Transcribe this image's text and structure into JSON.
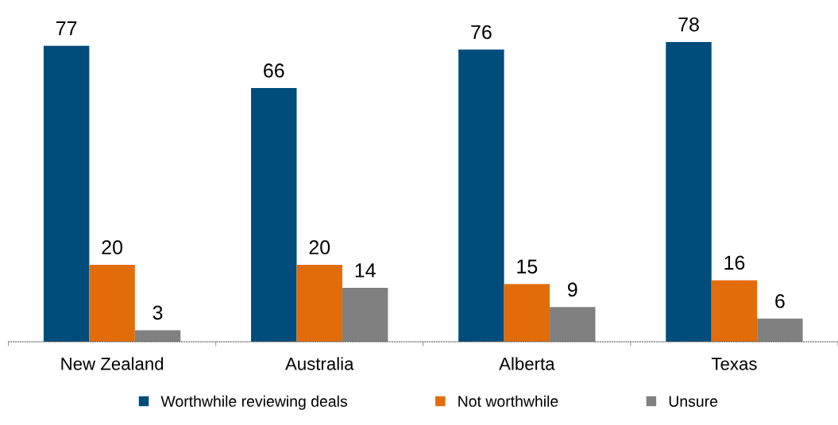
{
  "chart_data": {
    "type": "bar",
    "categories": [
      "New Zealand",
      "Australia",
      "Alberta",
      "Texas"
    ],
    "series": [
      {
        "name": "Worthwhile reviewing deals",
        "color": "#004c7a",
        "values": [
          77,
          66,
          76,
          78
        ]
      },
      {
        "name": "Not worthwhile",
        "color": "#e36c0a",
        "values": [
          20,
          20,
          15,
          16
        ]
      },
      {
        "name": "Unsure",
        "color": "#808080",
        "values": [
          3,
          14,
          9,
          6
        ]
      }
    ],
    "data_labels": true,
    "legend": "bottom",
    "grid": false,
    "tick_labels": "x"
  }
}
